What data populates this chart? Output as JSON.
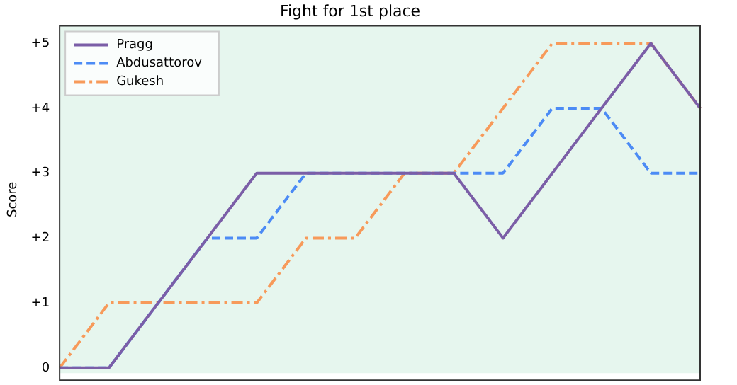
{
  "chart_data": {
    "type": "line",
    "title": "Fight for 1st place",
    "ylabel": "Score",
    "categories": [
      null,
      null,
      null,
      null,
      null,
      null,
      null,
      null,
      null,
      null,
      null,
      null,
      null,
      null
    ],
    "series": [
      {
        "name": "Pragg",
        "color": "#7b5ea7",
        "line_style": "solid",
        "values": [
          0,
          0,
          1,
          2,
          3,
          3,
          3,
          3,
          3,
          2,
          3,
          4,
          5,
          4
        ]
      },
      {
        "name": "Abdusattorov",
        "color": "#4c8bf5",
        "line_style": "dashed",
        "values": [
          0,
          0,
          1,
          2,
          2,
          3,
          3,
          3,
          3,
          3,
          4,
          4,
          3,
          3
        ]
      },
      {
        "name": "Gukesh",
        "color": "#f79a5a",
        "line_style": "dashdot",
        "values": [
          0,
          1,
          1,
          1,
          1,
          2,
          2,
          3,
          3,
          4,
          5,
          5,
          5,
          4
        ]
      }
    ],
    "ylim": [
      -0.08,
      5.27
    ],
    "yticks": [
      0,
      {
        "value": 1,
        "label": "+1"
      },
      {
        "value": 2,
        "label": "+2"
      },
      {
        "value": 3,
        "label": "+3"
      },
      {
        "value": 4,
        "label": "+4"
      },
      {
        "value": 5,
        "label": "+5"
      }
    ],
    "grid": false,
    "legend": "top left",
    "marker": "none"
  }
}
